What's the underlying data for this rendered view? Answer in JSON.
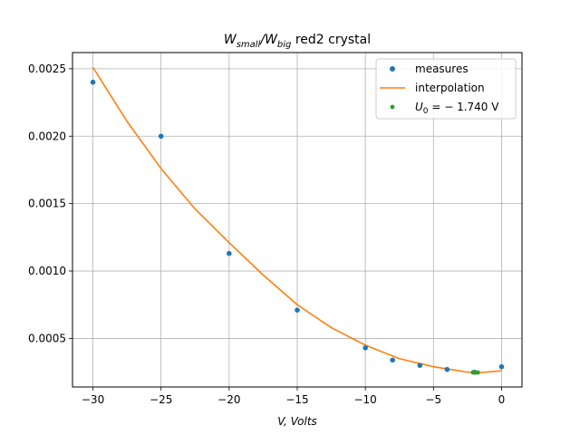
{
  "chart_data": {
    "type": "scatter",
    "title": {
      "w": "W",
      "sub1": "small",
      "slash": "/",
      "sub2": "big",
      "rest": " red2 crystal"
    },
    "xlabel": "V, Volts",
    "ylabel": "",
    "xlim": [
      -31.5,
      1.5
    ],
    "ylim": [
      0.00014,
      0.00262
    ],
    "x_ticks": [
      -30,
      -25,
      -20,
      -15,
      -10,
      -5,
      0
    ],
    "x_tick_labels": [
      "−30",
      "−25",
      "−20",
      "−15",
      "−10",
      "−5",
      "0"
    ],
    "y_ticks": [
      0.0005,
      0.001,
      0.0015,
      0.002,
      0.0025
    ],
    "y_tick_labels": [
      "0.0005",
      "0.0010",
      "0.0015",
      "0.0020",
      "0.0025"
    ],
    "grid": true,
    "legend_position": "top-right",
    "series": [
      {
        "name": "measures",
        "kind": "points",
        "color": "#1f77b4",
        "x": [
          -30,
          -25,
          -20,
          -15,
          -10,
          -8,
          -6,
          -4,
          -2,
          0
        ],
        "y": [
          0.0024,
          0.002,
          0.00113,
          0.00071,
          0.00043,
          0.00034,
          0.0003,
          0.00027,
          0.00025,
          0.00029
        ]
      },
      {
        "name": "interpolation",
        "kind": "line",
        "color": "#ff7f0e",
        "x": [
          -30,
          -27.5,
          -25,
          -22.5,
          -20,
          -17.5,
          -15,
          -12.5,
          -10,
          -7.5,
          -5,
          -2.5,
          -1.74,
          0
        ],
        "y": [
          0.00251,
          0.00211,
          0.00176,
          0.00146,
          0.00121,
          0.00097,
          0.00075,
          0.00058,
          0.00045,
          0.00035,
          0.00029,
          0.00025,
          0.000245,
          0.00026
        ]
      },
      {
        "name": "U_0 = -1.740 V",
        "kind": "points",
        "color": "#2ca02c",
        "x": [
          -2.1,
          -1.9,
          -1.74
        ],
        "y": [
          0.000248,
          0.000247,
          0.000247
        ]
      }
    ],
    "legend": {
      "measures": "measures",
      "interpolation": "interpolation",
      "u0_var": "U",
      "u0_sub": "0",
      "u0_eq": " = − 1.740 V"
    }
  }
}
